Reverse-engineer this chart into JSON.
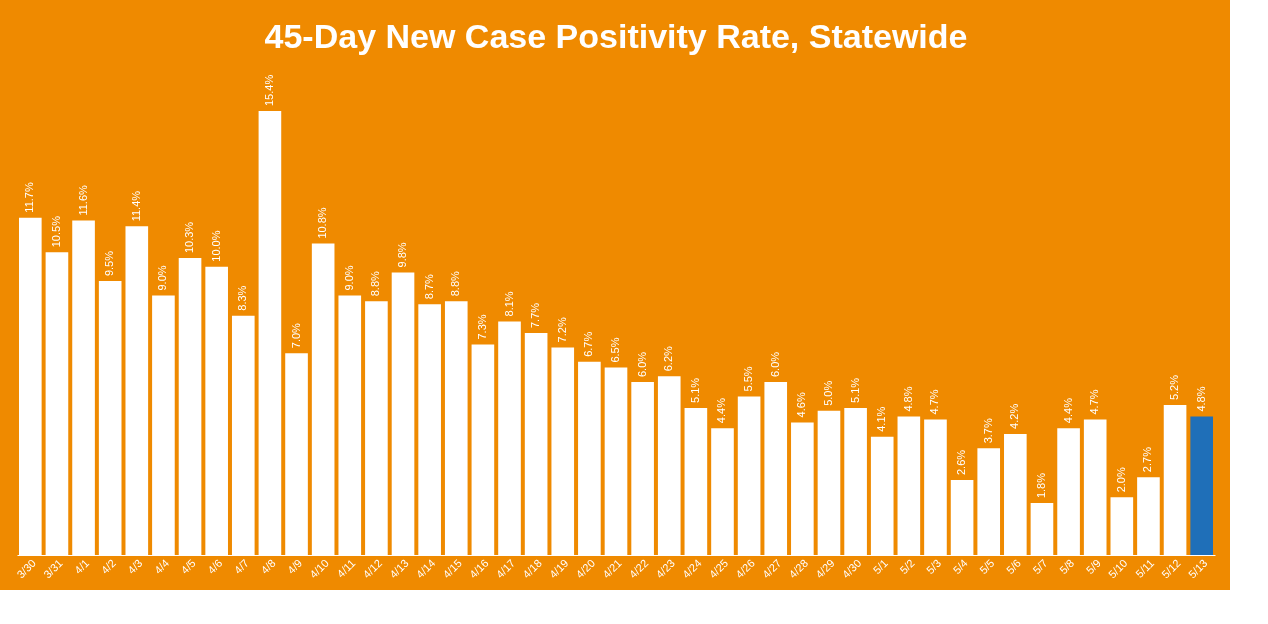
{
  "chart_data": {
    "type": "bar",
    "title": "45-Day New Case Positivity Rate, Statewide",
    "categories": [
      "3/30",
      "3/31",
      "4/1",
      "4/2",
      "4/3",
      "4/4",
      "4/5",
      "4/6",
      "4/7",
      "4/8",
      "4/9",
      "4/10",
      "4/11",
      "4/12",
      "4/13",
      "4/14",
      "4/15",
      "4/16",
      "4/17",
      "4/18",
      "4/19",
      "4/20",
      "4/21",
      "4/22",
      "4/23",
      "4/24",
      "4/25",
      "4/26",
      "4/27",
      "4/28",
      "4/29",
      "4/30",
      "5/1",
      "5/2",
      "5/3",
      "5/4",
      "5/5",
      "5/6",
      "5/7",
      "5/8",
      "5/9",
      "5/10",
      "5/11",
      "5/12",
      "5/13"
    ],
    "values": [
      11.7,
      10.5,
      11.6,
      9.5,
      11.4,
      9.0,
      10.3,
      10.0,
      8.3,
      15.4,
      7.0,
      10.8,
      9.0,
      8.8,
      9.8,
      8.7,
      8.8,
      7.3,
      8.1,
      7.7,
      7.2,
      6.7,
      6.5,
      6.0,
      6.2,
      5.1,
      4.4,
      5.5,
      6.0,
      4.6,
      5.0,
      5.1,
      4.1,
      4.8,
      4.7,
      2.6,
      3.7,
      4.2,
      1.8,
      4.4,
      4.7,
      2.0,
      2.7,
      5.2,
      4.8
    ],
    "value_labels": [
      "11.7%",
      "10.5%",
      "11.6%",
      "9.5%",
      "11.4%",
      "9.0%",
      "10.3%",
      "10.0%",
      "8.3%",
      "15.4%",
      "7.0%",
      "10.8%",
      "9.0%",
      "8.8%",
      "9.8%",
      "8.7%",
      "8.8%",
      "7.3%",
      "8.1%",
      "7.7%",
      "7.2%",
      "6.7%",
      "6.5%",
      "6.0%",
      "6.2%",
      "5.1%",
      "4.4%",
      "5.5%",
      "6.0%",
      "4.6%",
      "5.0%",
      "5.1%",
      "4.1%",
      "4.8%",
      "4.7%",
      "2.6%",
      "3.7%",
      "4.2%",
      "1.8%",
      "4.4%",
      "4.7%",
      "2.0%",
      "2.7%",
      "5.2%",
      "4.8%"
    ],
    "colors": [
      "#ffffff",
      "#ffffff",
      "#ffffff",
      "#ffffff",
      "#ffffff",
      "#ffffff",
      "#ffffff",
      "#ffffff",
      "#ffffff",
      "#ffffff",
      "#ffffff",
      "#ffffff",
      "#ffffff",
      "#ffffff",
      "#ffffff",
      "#ffffff",
      "#ffffff",
      "#ffffff",
      "#ffffff",
      "#ffffff",
      "#ffffff",
      "#ffffff",
      "#ffffff",
      "#ffffff",
      "#ffffff",
      "#ffffff",
      "#ffffff",
      "#ffffff",
      "#ffffff",
      "#ffffff",
      "#ffffff",
      "#ffffff",
      "#ffffff",
      "#ffffff",
      "#ffffff",
      "#ffffff",
      "#ffffff",
      "#ffffff",
      "#ffffff",
      "#ffffff",
      "#ffffff",
      "#ffffff",
      "#ffffff",
      "#ffffff",
      "#1f6fb8"
    ],
    "grid": false,
    "legend": false
  }
}
